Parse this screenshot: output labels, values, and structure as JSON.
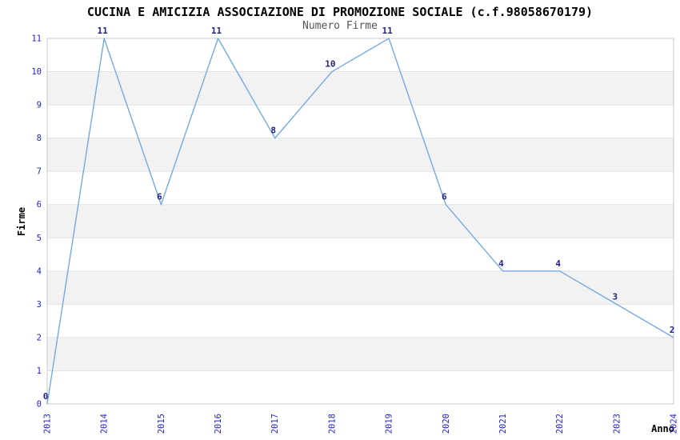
{
  "chart_data": {
    "type": "line",
    "title": "CUCINA E AMICIZIA ASSOCIAZIONE DI PROMOZIONE SOCIALE (c.f.98058670179)",
    "subtitle": "Numero Firme",
    "xlabel": "Anno",
    "ylabel": "Firme",
    "x": [
      "2013",
      "2014",
      "2015",
      "2016",
      "2017",
      "2018",
      "2019",
      "2020",
      "2021",
      "2022",
      "2023",
      "2024"
    ],
    "values": [
      0,
      11,
      6,
      11,
      8,
      10,
      11,
      6,
      4,
      4,
      3,
      2
    ],
    "ylim": [
      0,
      11
    ],
    "yticks": [
      0,
      1,
      2,
      3,
      4,
      5,
      6,
      7,
      8,
      9,
      10,
      11
    ],
    "grid": "horizontal-gridlines-with-alternating-bands",
    "legend": false,
    "colors": {
      "line": "#74a9e2",
      "axis_tick_label": "#2424cc",
      "data_label": "#222288",
      "band": "#f2f2f2",
      "gridline": "#e2e2e2",
      "border": "#c9c9c9",
      "title": "#000000",
      "subtitle": "#555555"
    }
  }
}
